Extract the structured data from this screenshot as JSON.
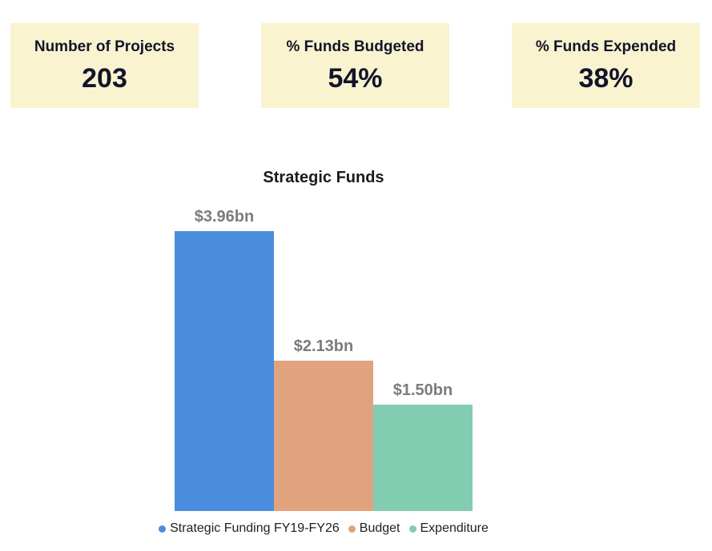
{
  "kpi_cards": [
    {
      "label": "Number of Projects",
      "value": "203"
    },
    {
      "label": "% Funds Budgeted",
      "value": "54%"
    },
    {
      "label": "% Funds Expended",
      "value": "38%"
    }
  ],
  "chart_data": {
    "type": "bar",
    "title": "Strategic Funds",
    "categories": [
      "Strategic Funding FY19-FY26",
      "Budget",
      "Expenditure"
    ],
    "series": [
      {
        "name": "Strategic Funding FY19-FY26",
        "value": 3.96,
        "data_label": "$3.96bn",
        "color": "#4A8DDC"
      },
      {
        "name": "Budget",
        "value": 2.13,
        "data_label": "$2.13bn",
        "color": "#E0A37E"
      },
      {
        "name": "Expenditure",
        "value": 1.5,
        "data_label": "$1.50bn",
        "color": "#82CDB2"
      }
    ],
    "unit": "bn",
    "ylim": [
      0,
      3.96
    ],
    "grid": false,
    "axes_visible": false,
    "legend_position": "bottom"
  },
  "colors": {
    "background": "#FFFFFF",
    "card_bg": "#FAF3CF",
    "card_text": "#12142A",
    "chart_title": "#1A1A1A",
    "data_label": "#7C7C7C",
    "legend_text": "#212121"
  }
}
